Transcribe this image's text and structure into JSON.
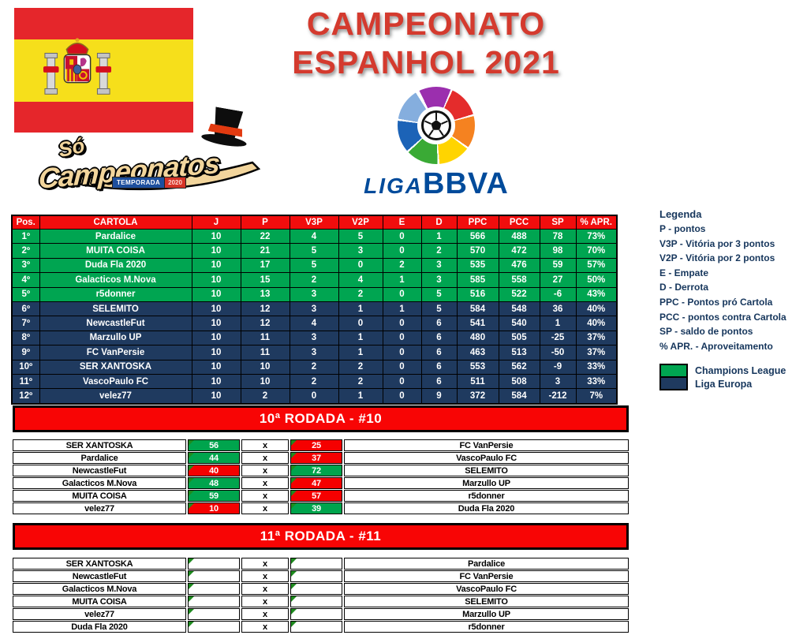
{
  "title": {
    "line1": "CAMPEONATO",
    "line2": "ESPANHOL 2021"
  },
  "liga_logo": {
    "liga": "LIGA",
    "bbva": "BBVA"
  },
  "so_campeonatos": {
    "so": "Só",
    "main": "Campeonatos",
    "badge": "TEMPORADA",
    "badge_year": "2020"
  },
  "standings": {
    "headers": [
      "Pos.",
      "CARTOLA",
      "J",
      "P",
      "V3P",
      "V2P",
      "E",
      "D",
      "PPC",
      "PCC",
      "SP",
      "% APR."
    ],
    "rows": [
      {
        "pos": "1º",
        "cartola": "Pardalice",
        "j": "10",
        "p": "22",
        "v3p": "4",
        "v2p": "5",
        "e": "0",
        "d": "1",
        "ppc": "566",
        "pcc": "488",
        "sp": "78",
        "apr": "73%",
        "zone": "champions"
      },
      {
        "pos": "2º",
        "cartola": "MUITA COISA",
        "j": "10",
        "p": "21",
        "v3p": "5",
        "v2p": "3",
        "e": "0",
        "d": "2",
        "ppc": "570",
        "pcc": "472",
        "sp": "98",
        "apr": "70%",
        "zone": "champions"
      },
      {
        "pos": "3º",
        "cartola": "Duda Fla 2020",
        "j": "10",
        "p": "17",
        "v3p": "5",
        "v2p": "0",
        "e": "2",
        "d": "3",
        "ppc": "535",
        "pcc": "476",
        "sp": "59",
        "apr": "57%",
        "zone": "champions"
      },
      {
        "pos": "4º",
        "cartola": "Galacticos M.Nova",
        "j": "10",
        "p": "15",
        "v3p": "2",
        "v2p": "4",
        "e": "1",
        "d": "3",
        "ppc": "585",
        "pcc": "558",
        "sp": "27",
        "apr": "50%",
        "zone": "champions"
      },
      {
        "pos": "5º",
        "cartola": "r5donner",
        "j": "10",
        "p": "13",
        "v3p": "3",
        "v2p": "2",
        "e": "0",
        "d": "5",
        "ppc": "516",
        "pcc": "522",
        "sp": "-6",
        "apr": "43%",
        "zone": "champions"
      },
      {
        "pos": "6º",
        "cartola": "SELEMITO",
        "j": "10",
        "p": "12",
        "v3p": "3",
        "v2p": "1",
        "e": "1",
        "d": "5",
        "ppc": "584",
        "pcc": "548",
        "sp": "36",
        "apr": "40%",
        "zone": "europa"
      },
      {
        "pos": "7º",
        "cartola": "NewcastleFut",
        "j": "10",
        "p": "12",
        "v3p": "4",
        "v2p": "0",
        "e": "0",
        "d": "6",
        "ppc": "541",
        "pcc": "540",
        "sp": "1",
        "apr": "40%",
        "zone": "europa"
      },
      {
        "pos": "8º",
        "cartola": "Marzullo UP",
        "j": "10",
        "p": "11",
        "v3p": "3",
        "v2p": "1",
        "e": "0",
        "d": "6",
        "ppc": "480",
        "pcc": "505",
        "sp": "-25",
        "apr": "37%",
        "zone": "europa"
      },
      {
        "pos": "9º",
        "cartola": "FC VanPersie",
        "j": "10",
        "p": "11",
        "v3p": "3",
        "v2p": "1",
        "e": "0",
        "d": "6",
        "ppc": "463",
        "pcc": "513",
        "sp": "-50",
        "apr": "37%",
        "zone": "europa"
      },
      {
        "pos": "10º",
        "cartola": "SER XANTOSKA",
        "j": "10",
        "p": "10",
        "v3p": "2",
        "v2p": "2",
        "e": "0",
        "d": "6",
        "ppc": "553",
        "pcc": "562",
        "sp": "-9",
        "apr": "33%",
        "zone": "europa"
      },
      {
        "pos": "11º",
        "cartola": "VascoPaulo FC",
        "j": "10",
        "p": "10",
        "v3p": "2",
        "v2p": "2",
        "e": "0",
        "d": "6",
        "ppc": "511",
        "pcc": "508",
        "sp": "3",
        "apr": "33%",
        "zone": "europa"
      },
      {
        "pos": "12º",
        "cartola": "velez77",
        "j": "10",
        "p": "2",
        "v3p": "0",
        "v2p": "1",
        "e": "0",
        "d": "9",
        "ppc": "372",
        "pcc": "584",
        "sp": "-212",
        "apr": "7%",
        "zone": "europa"
      }
    ]
  },
  "legend": {
    "title": "Legenda",
    "items": [
      "P - pontos",
      "V3P - Vitória por 3 pontos",
      "V2P - Vitória por 2 pontos",
      "E - Empate",
      "D - Derrota",
      "PPC - Pontos pró Cartola",
      "PCC - pontos contra Cartola",
      "SP - saldo de pontos",
      "% APR. - Aproveitamento"
    ],
    "zones": [
      {
        "label": "Champions League",
        "color": "#00a551"
      },
      {
        "label": "Liga Europa",
        "color": "#1f3a5f"
      }
    ]
  },
  "round10": {
    "title": "10ª RODADA - #10",
    "separator": "x",
    "matches": [
      {
        "home": "SER XANTOSKA",
        "home_score": "56",
        "home_result": "win",
        "away_score": "25",
        "away_result": "loss",
        "away": "FC VanPersie"
      },
      {
        "home": "Pardalice",
        "home_score": "44",
        "home_result": "win",
        "away_score": "37",
        "away_result": "loss",
        "away": "VascoPaulo FC"
      },
      {
        "home": "NewcastleFut",
        "home_score": "40",
        "home_result": "loss",
        "away_score": "72",
        "away_result": "win",
        "away": "SELEMITO"
      },
      {
        "home": "Galacticos M.Nova",
        "home_score": "48",
        "home_result": "win",
        "away_score": "47",
        "away_result": "loss",
        "away": "Marzullo UP"
      },
      {
        "home": "MUITA COISA",
        "home_score": "59",
        "home_result": "win",
        "away_score": "57",
        "away_result": "loss",
        "away": "r5donner"
      },
      {
        "home": "velez77",
        "home_score": "10",
        "home_result": "loss",
        "away_score": "39",
        "away_result": "win",
        "away": "Duda Fla 2020"
      }
    ]
  },
  "round11": {
    "title": "11ª RODADA - #11",
    "separator": "x",
    "matches": [
      {
        "home": "SER XANTOSKA",
        "home_score": "",
        "home_result": "pending",
        "away_score": "",
        "away_result": "pending",
        "away": "Pardalice"
      },
      {
        "home": "NewcastleFut",
        "home_score": "",
        "home_result": "pending",
        "away_score": "",
        "away_result": "pending",
        "away": "FC VanPersie"
      },
      {
        "home": "Galacticos M.Nova",
        "home_score": "",
        "home_result": "pending",
        "away_score": "",
        "away_result": "pending",
        "away": "VascoPaulo FC"
      },
      {
        "home": "MUITA COISA",
        "home_score": "",
        "home_result": "pending",
        "away_score": "",
        "away_result": "pending",
        "away": "SELEMITO"
      },
      {
        "home": "velez77",
        "home_score": "",
        "home_result": "pending",
        "away_score": "",
        "away_result": "pending",
        "away": "Marzullo UP"
      },
      {
        "home": "Duda Fla 2020",
        "home_score": "",
        "home_result": "pending",
        "away_score": "",
        "away_result": "pending",
        "away": "r5donner"
      }
    ]
  },
  "colors": {
    "header_red": "#f10d0d",
    "banner_red": "#f80505",
    "champions_green": "#00a551",
    "europa_navy": "#1f3a5f",
    "score_win_green": "#00a44d",
    "score_loss_red": "#f50000",
    "title_red": "#d43a2e",
    "liga_blue": "#004b9b",
    "legend_text": "#16365c",
    "flag_red": "#e5262b",
    "flag_yellow": "#f6df1b",
    "error_triangle_green": "#1f8b1f"
  }
}
